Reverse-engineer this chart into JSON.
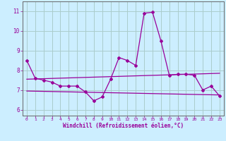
{
  "x": [
    0,
    1,
    2,
    3,
    4,
    5,
    6,
    7,
    8,
    9,
    10,
    11,
    12,
    13,
    14,
    15,
    16,
    17,
    18,
    19,
    20,
    21,
    22,
    23
  ],
  "y_main": [
    8.5,
    7.6,
    7.5,
    7.4,
    7.2,
    7.2,
    7.2,
    6.9,
    6.45,
    6.65,
    7.55,
    8.65,
    8.5,
    8.25,
    10.9,
    10.95,
    9.5,
    7.75,
    7.8,
    7.8,
    7.75,
    7.0,
    7.2,
    6.7
  ],
  "trend1_x": [
    0,
    23
  ],
  "trend1_y": [
    7.55,
    7.85
  ],
  "trend2_x": [
    0,
    23
  ],
  "trend2_y": [
    6.95,
    6.75
  ],
  "line_color": "#990099",
  "bg_color": "#cceeff",
  "grid_color": "#aacccc",
  "xlabel": "Windchill (Refroidissement éolien,°C)",
  "ylabel_ticks": [
    6,
    7,
    8,
    9,
    10,
    11
  ],
  "xlim": [
    -0.5,
    23.5
  ],
  "ylim": [
    5.7,
    11.5
  ],
  "xtick_labels": [
    "0",
    "1",
    "2",
    "3",
    "4",
    "5",
    "6",
    "7",
    "8",
    "9",
    "10",
    "11",
    "12",
    "13",
    "14",
    "15",
    "16",
    "17",
    "18",
    "19",
    "20",
    "21",
    "22",
    "23"
  ]
}
